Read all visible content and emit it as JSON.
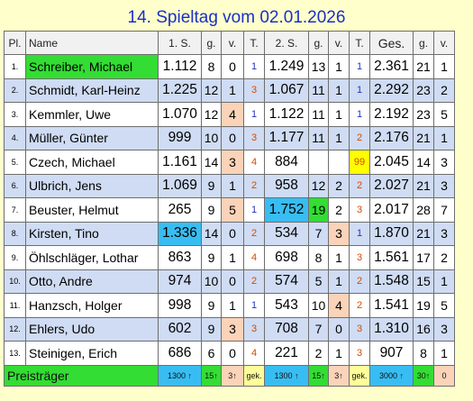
{
  "title": "14. Spieltag vom 02.01.2026",
  "headers": [
    "Pl.",
    "Name",
    "1. S.",
    "g.",
    "v.",
    "T.",
    "2. S.",
    "g.",
    "v.",
    "T.",
    "Ges.",
    "g.",
    "v."
  ],
  "rows": [
    [
      "1.",
      "Schreiber, Michael",
      "1.112",
      "8",
      "0",
      "1",
      "1.249",
      "13",
      "1",
      "1",
      "2.361",
      "21",
      "1"
    ],
    [
      "2.",
      "Schmidt, Karl-Heinz",
      "1.225",
      "12",
      "1",
      "3",
      "1.067",
      "11",
      "1",
      "1",
      "2.292",
      "23",
      "2"
    ],
    [
      "3.",
      "Kemmler, Uwe",
      "1.070",
      "12",
      "4",
      "1",
      "1.122",
      "11",
      "1",
      "1",
      "2.192",
      "23",
      "5"
    ],
    [
      "4.",
      "Müller, Günter",
      "999",
      "10",
      "0",
      "3",
      "1.177",
      "11",
      "1",
      "2",
      "2.176",
      "21",
      "1"
    ],
    [
      "5.",
      "Czech, Michael",
      "1.161",
      "14",
      "3",
      "4",
      "884",
      "",
      "",
      "99",
      "2.045",
      "14",
      "3"
    ],
    [
      "6.",
      "Ulbrich, Jens",
      "1.069",
      "9",
      "1",
      "2",
      "958",
      "12",
      "2",
      "2",
      "2.027",
      "21",
      "3"
    ],
    [
      "7.",
      "Beuster, Helmut",
      "265",
      "9",
      "5",
      "1",
      "1.752",
      "19",
      "2",
      "3",
      "2.017",
      "28",
      "7"
    ],
    [
      "8.",
      "Kirsten, Tino",
      "1.336",
      "14",
      "0",
      "2",
      "534",
      "7",
      "3",
      "1",
      "1.870",
      "21",
      "3"
    ],
    [
      "9.",
      "Öhlschläger, Lothar",
      "863",
      "9",
      "1",
      "4",
      "698",
      "8",
      "1",
      "3",
      "1.561",
      "17",
      "2"
    ],
    [
      "10.",
      "Otto, Andre",
      "974",
      "10",
      "0",
      "2",
      "574",
      "5",
      "1",
      "2",
      "1.548",
      "15",
      "1"
    ],
    [
      "11.",
      "Hanzsch, Holger",
      "998",
      "9",
      "1",
      "1",
      "543",
      "10",
      "4",
      "2",
      "1.541",
      "19",
      "5"
    ],
    [
      "12.",
      "Ehlers, Udo",
      "602",
      "9",
      "3",
      "3",
      "708",
      "7",
      "0",
      "3",
      "1.310",
      "16",
      "3"
    ],
    [
      "13.",
      "Steinigen, Erich",
      "686",
      "6",
      "0",
      "4",
      "221",
      "2",
      "1",
      "3",
      "907",
      "8",
      "1"
    ]
  ],
  "prize_row": {
    "label": "Preisträger",
    "cells": [
      "1300 ↑",
      "15↑",
      "3↑",
      "gek.",
      "1300 ↑",
      "15↑",
      "3↑",
      "gek.",
      "3000 ↑",
      "30↑",
      "0"
    ]
  },
  "colors": {
    "title": "#1a2fc8",
    "background": "#ffffcc",
    "row_alt": "#cfdcf3",
    "highlight_green": "#33dd33",
    "highlight_blue": "#38bdf2",
    "highlight_orange": "#fad3b8",
    "highlight_yellow": "#ffff00",
    "tie_number": "#d24b00"
  }
}
